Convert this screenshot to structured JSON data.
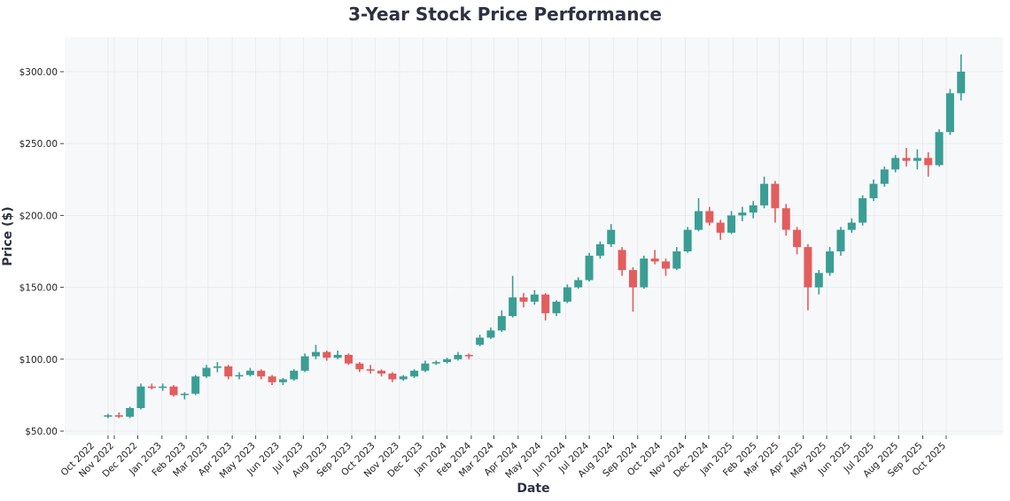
{
  "chart_data": {
    "type": "candlestick",
    "title": "3-Year Stock Price Performance",
    "xlabel": "Date",
    "ylabel": "Price ($)",
    "ylim": [
      50,
      300
    ],
    "yticks": [
      "$50.00",
      "$100.00",
      "$150.00",
      "$200.00",
      "$250.00",
      "$300.00"
    ],
    "ytick_values": [
      50,
      100,
      150,
      200,
      250,
      300
    ],
    "xticks": [
      {
        "date": "2022-10-24",
        "label": "Oct 2022"
      },
      {
        "date": "2022-11-01",
        "label": "Nov 2022"
      },
      {
        "date": "2022-12-01",
        "label": "Dec 2022"
      },
      {
        "date": "2023-01-01",
        "label": "Jan 2023"
      },
      {
        "date": "2023-02-01",
        "label": "Feb 2023"
      },
      {
        "date": "2023-03-01",
        "label": "Mar 2023"
      },
      {
        "date": "2023-04-01",
        "label": "Apr 2023"
      },
      {
        "date": "2023-05-01",
        "label": "May 2023"
      },
      {
        "date": "2023-06-01",
        "label": "Jun 2023"
      },
      {
        "date": "2023-07-01",
        "label": "Jul 2023"
      },
      {
        "date": "2023-08-01",
        "label": "Aug 2023"
      },
      {
        "date": "2023-09-01",
        "label": "Sep 2023"
      },
      {
        "date": "2023-10-01",
        "label": "Oct 2023"
      },
      {
        "date": "2023-11-01",
        "label": "Nov 2023"
      },
      {
        "date": "2023-12-01",
        "label": "Dec 2023"
      },
      {
        "date": "2024-01-01",
        "label": "Jan 2024"
      },
      {
        "date": "2024-02-01",
        "label": "Feb 2024"
      },
      {
        "date": "2024-03-01",
        "label": "Mar 2024"
      },
      {
        "date": "2024-04-01",
        "label": "Apr 2024"
      },
      {
        "date": "2024-05-01",
        "label": "May 2024"
      },
      {
        "date": "2024-06-01",
        "label": "Jun 2024"
      },
      {
        "date": "2024-07-01",
        "label": "Jul 2024"
      },
      {
        "date": "2024-08-01",
        "label": "Aug 2024"
      },
      {
        "date": "2024-09-01",
        "label": "Sep 2024"
      },
      {
        "date": "2024-10-01",
        "label": "Oct 2024"
      },
      {
        "date": "2024-11-01",
        "label": "Nov 2024"
      },
      {
        "date": "2024-12-01",
        "label": "Dec 2024"
      },
      {
        "date": "2025-01-01",
        "label": "Jan 2025"
      },
      {
        "date": "2025-02-01",
        "label": "Feb 2025"
      },
      {
        "date": "2025-03-01",
        "label": "Mar 2025"
      },
      {
        "date": "2025-04-01",
        "label": "Apr 2025"
      },
      {
        "date": "2025-05-01",
        "label": "May 2025"
      },
      {
        "date": "2025-06-01",
        "label": "Jun 2025"
      },
      {
        "date": "2025-07-01",
        "label": "Jul 2025"
      },
      {
        "date": "2025-08-01",
        "label": "Aug 2025"
      },
      {
        "date": "2025-09-01",
        "label": "Sep 2025"
      },
      {
        "date": "2025-10-01",
        "label": "Oct 2025"
      }
    ],
    "grid": true,
    "colors": {
      "up": "#3a9e94",
      "down": "#e35d5d",
      "background": "#f7f8fa",
      "grid": "#e6e8ec",
      "title": "#2d3142"
    },
    "candles_columns": [
      "date",
      "open",
      "high",
      "low",
      "close"
    ],
    "candles": [
      [
        "2022-10-24",
        60,
        62,
        59,
        61
      ],
      [
        "2022-11-07",
        61,
        63,
        59,
        60
      ],
      [
        "2022-11-21",
        60,
        67,
        59,
        66
      ],
      [
        "2022-12-05",
        66,
        83,
        65,
        81
      ],
      [
        "2022-12-19",
        81,
        83,
        79,
        80
      ],
      [
        "2023-01-02",
        80,
        83,
        78,
        81
      ],
      [
        "2023-01-16",
        81,
        82,
        74,
        75
      ],
      [
        "2023-01-30",
        75,
        77,
        72,
        76
      ],
      [
        "2023-02-13",
        76,
        89,
        75,
        88
      ],
      [
        "2023-02-27",
        88,
        96,
        87,
        94
      ],
      [
        "2023-03-13",
        94,
        98,
        91,
        95
      ],
      [
        "2023-03-27",
        95,
        96,
        86,
        88
      ],
      [
        "2023-04-10",
        88,
        91,
        86,
        89
      ],
      [
        "2023-04-24",
        89,
        94,
        88,
        92
      ],
      [
        "2023-05-08",
        92,
        93,
        86,
        88
      ],
      [
        "2023-05-22",
        88,
        89,
        82,
        84
      ],
      [
        "2023-06-05",
        84,
        87,
        82,
        86
      ],
      [
        "2023-06-19",
        86,
        93,
        85,
        92
      ],
      [
        "2023-07-03",
        92,
        104,
        91,
        102
      ],
      [
        "2023-07-17",
        102,
        110,
        100,
        105
      ],
      [
        "2023-07-31",
        105,
        106,
        99,
        101
      ],
      [
        "2023-08-14",
        101,
        106,
        100,
        103
      ],
      [
        "2023-08-28",
        103,
        104,
        96,
        97
      ],
      [
        "2023-09-11",
        97,
        98,
        91,
        93
      ],
      [
        "2023-09-25",
        93,
        96,
        90,
        92
      ],
      [
        "2023-10-09",
        92,
        93,
        88,
        90
      ],
      [
        "2023-10-23",
        90,
        91,
        84,
        86
      ],
      [
        "2023-11-06",
        86,
        89,
        85,
        88
      ],
      [
        "2023-11-20",
        88,
        93,
        87,
        92
      ],
      [
        "2023-12-04",
        92,
        99,
        91,
        97
      ],
      [
        "2023-12-18",
        97,
        99,
        96,
        98
      ],
      [
        "2024-01-01",
        98,
        101,
        97,
        100
      ],
      [
        "2024-01-15",
        100,
        105,
        99,
        103
      ],
      [
        "2024-01-29",
        103,
        104,
        100,
        102
      ],
      [
        "2024-02-12",
        110,
        117,
        109,
        115
      ],
      [
        "2024-02-26",
        115,
        122,
        114,
        120
      ],
      [
        "2024-03-11",
        120,
        134,
        119,
        130
      ],
      [
        "2024-03-25",
        130,
        158,
        129,
        143
      ],
      [
        "2024-04-08",
        143,
        146,
        136,
        140
      ],
      [
        "2024-04-22",
        140,
        148,
        138,
        145
      ],
      [
        "2024-05-06",
        145,
        146,
        127,
        132
      ],
      [
        "2024-05-20",
        132,
        141,
        130,
        140
      ],
      [
        "2024-06-03",
        140,
        152,
        139,
        150
      ],
      [
        "2024-06-17",
        150,
        157,
        149,
        155
      ],
      [
        "2024-07-01",
        155,
        174,
        154,
        172
      ],
      [
        "2024-07-15",
        172,
        182,
        170,
        180
      ],
      [
        "2024-07-29",
        180,
        194,
        178,
        190
      ],
      [
        "2024-08-12",
        176,
        178,
        158,
        162
      ],
      [
        "2024-08-26",
        162,
        164,
        133,
        150
      ],
      [
        "2024-09-09",
        150,
        172,
        149,
        170
      ],
      [
        "2024-09-23",
        170,
        176,
        166,
        168
      ],
      [
        "2024-10-07",
        168,
        170,
        158,
        163
      ],
      [
        "2024-10-21",
        163,
        178,
        162,
        175
      ],
      [
        "2024-11-04",
        175,
        192,
        174,
        190
      ],
      [
        "2024-11-18",
        190,
        212,
        189,
        203
      ],
      [
        "2024-12-02",
        203,
        206,
        193,
        195
      ],
      [
        "2024-12-16",
        195,
        197,
        183,
        188
      ],
      [
        "2024-12-30",
        188,
        203,
        187,
        200
      ],
      [
        "2025-01-13",
        200,
        206,
        196,
        202
      ],
      [
        "2025-01-27",
        202,
        210,
        198,
        207
      ],
      [
        "2025-02-10",
        207,
        227,
        205,
        222
      ],
      [
        "2025-02-24",
        222,
        224,
        195,
        205
      ],
      [
        "2025-03-10",
        205,
        208,
        186,
        190
      ],
      [
        "2025-03-24",
        190,
        192,
        173,
        178
      ],
      [
        "2025-04-07",
        178,
        180,
        134,
        150
      ],
      [
        "2025-04-21",
        150,
        162,
        145,
        160
      ],
      [
        "2025-05-05",
        160,
        178,
        158,
        175
      ],
      [
        "2025-05-19",
        175,
        192,
        172,
        190
      ],
      [
        "2025-06-02",
        190,
        198,
        188,
        195
      ],
      [
        "2025-06-16",
        195,
        214,
        193,
        212
      ],
      [
        "2025-06-30",
        212,
        225,
        210,
        222
      ],
      [
        "2025-07-14",
        222,
        234,
        220,
        232
      ],
      [
        "2025-07-28",
        232,
        242,
        230,
        240
      ],
      [
        "2025-08-11",
        240,
        247,
        234,
        238
      ],
      [
        "2025-08-25",
        238,
        246,
        232,
        240
      ],
      [
        "2025-09-08",
        240,
        244,
        227,
        235
      ],
      [
        "2025-09-22",
        235,
        260,
        234,
        258
      ],
      [
        "2025-10-06",
        258,
        288,
        256,
        285
      ],
      [
        "2025-10-20",
        285,
        312,
        280,
        300
      ]
    ]
  }
}
